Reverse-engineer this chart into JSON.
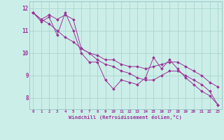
{
  "xlabel": "Windchill (Refroidissement éolien,°C)",
  "background_color": "#cceee8",
  "grid_color": "#aad4ce",
  "line_color": "#993399",
  "hours": [
    0,
    1,
    2,
    3,
    4,
    5,
    6,
    7,
    8,
    9,
    10,
    11,
    12,
    13,
    14,
    15,
    16,
    17,
    18,
    19,
    20,
    21,
    22,
    23
  ],
  "line1": [
    11.8,
    11.4,
    11.6,
    10.8,
    11.8,
    11.0,
    10.0,
    9.6,
    9.6,
    8.8,
    8.4,
    8.8,
    8.7,
    8.6,
    8.9,
    9.8,
    9.3,
    9.7,
    9.3,
    8.9,
    8.6,
    8.3,
    8.1,
    7.7
  ],
  "line2": [
    11.8,
    11.5,
    11.7,
    11.5,
    11.7,
    11.5,
    10.2,
    10.0,
    9.9,
    9.7,
    9.7,
    9.5,
    9.4,
    9.4,
    9.3,
    9.4,
    9.5,
    9.6,
    9.6,
    9.4,
    9.2,
    9.0,
    8.7,
    8.5
  ],
  "line3": [
    11.8,
    11.5,
    11.3,
    11.0,
    10.7,
    10.5,
    10.2,
    10.0,
    9.7,
    9.5,
    9.4,
    9.2,
    9.1,
    8.9,
    8.8,
    8.8,
    9.0,
    9.2,
    9.2,
    9.0,
    8.8,
    8.6,
    8.3,
    7.7
  ],
  "ylim": [
    7.5,
    12.3
  ],
  "yticks": [
    8,
    9,
    10,
    11,
    12
  ],
  "xlim": [
    -0.5,
    23.5
  ]
}
